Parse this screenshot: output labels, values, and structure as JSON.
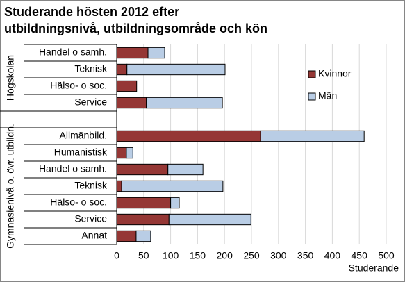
{
  "chart_data": {
    "type": "stacked-barh",
    "title": [
      "Studerande hösten 2012 efter",
      "utbildningsnivå, utbildningsområde och kön"
    ],
    "groups": [
      {
        "name": "Högskolan",
        "count": 4
      },
      {
        "name": "Gymnasienivå o. övr. utbildn.",
        "count": 7
      }
    ],
    "categories": [
      "Handel o samh.",
      "Teknisk",
      "Hälso- o soc.",
      "Service",
      null,
      "Allmänbild.",
      "Humanistisk",
      "Handel o samh.",
      "Teknisk",
      "Hälso- o soc.",
      "Service",
      "Annat"
    ],
    "series": [
      {
        "name": "Kvinnor",
        "color": "#953735",
        "values": [
          58,
          19,
          37,
          55,
          null,
          267,
          18,
          95,
          9,
          100,
          97,
          36
        ]
      },
      {
        "name": "Män",
        "color": "#b9cde5",
        "values": [
          31,
          182,
          0,
          141,
          null,
          192,
          12,
          65,
          188,
          16,
          152,
          27
        ]
      }
    ],
    "xlabel": "Studerande",
    "xlim": [
      0,
      500
    ],
    "xticks": [
      0,
      50,
      100,
      150,
      200,
      250,
      300,
      350,
      400,
      450,
      500
    ],
    "grid": true,
    "legend": "upper right"
  }
}
